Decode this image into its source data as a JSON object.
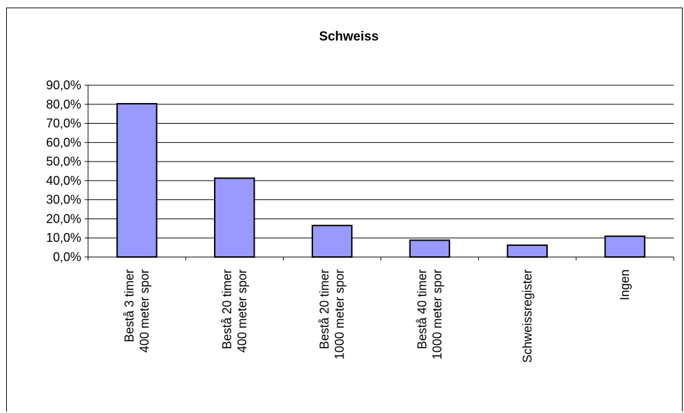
{
  "chart_data": {
    "type": "bar",
    "title": "Schweiss",
    "xlabel": "",
    "ylabel": "",
    "ylim": [
      0,
      90
    ],
    "yticks": [
      0,
      10,
      20,
      30,
      40,
      50,
      60,
      70,
      80,
      90
    ],
    "ytick_labels": [
      "0,0%",
      "10,0%",
      "20,0%",
      "30,0%",
      "40,0%",
      "50,0%",
      "60,0%",
      "70,0%",
      "80,0%",
      "90,0%"
    ],
    "grid": true,
    "legend": "none",
    "bar_color": "#9999ff",
    "bar_edge_color": "#000000",
    "categories": [
      [
        "Bestå 3 timer",
        "400 meter spor"
      ],
      [
        "Bestå 20 timer",
        "400 meter spor"
      ],
      [
        "Bestå 20 timer",
        "1000 meter spor"
      ],
      [
        "Bestå 40 timer",
        "1000 meter spor"
      ],
      [
        "Schweissregister"
      ],
      [
        "Ingen"
      ]
    ],
    "values": [
      80.3,
      41.3,
      16.5,
      8.8,
      6.2,
      10.9
    ]
  }
}
